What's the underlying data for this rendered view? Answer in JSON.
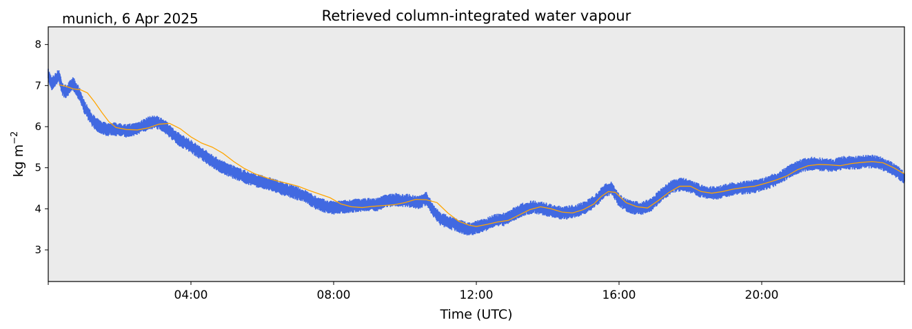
{
  "chart_data": {
    "type": "line",
    "title": "Retrieved column-integrated water vapour",
    "subtitle": "munich, 6 Apr 2025",
    "xlabel": "Time (UTC)",
    "ylabel": "kg m",
    "ylabel_sup": "−2",
    "x_unit": "hours UTC",
    "xlim": [
      0,
      24
    ],
    "ylim": [
      2.23,
      8.43
    ],
    "x_ticks": [
      {
        "value": 4,
        "label": "04:00"
      },
      {
        "value": 8,
        "label": "08:00"
      },
      {
        "value": 12,
        "label": "12:00"
      },
      {
        "value": 16,
        "label": "16:00"
      },
      {
        "value": 20,
        "label": "20:00"
      }
    ],
    "y_ticks": [
      {
        "value": 3,
        "label": "3"
      },
      {
        "value": 4,
        "label": "4"
      },
      {
        "value": 5,
        "label": "5"
      },
      {
        "value": 6,
        "label": "6"
      },
      {
        "value": 7,
        "label": "7"
      },
      {
        "value": 8,
        "label": "8"
      }
    ],
    "background": "#ebebeb",
    "grid": false,
    "series": [
      {
        "style": "scatter-band",
        "color": "#4169e1",
        "x": [
          0.0,
          0.1,
          0.2,
          0.3,
          0.4,
          0.5,
          0.6,
          0.7,
          0.8,
          0.9,
          1.0,
          1.1,
          1.2,
          1.35,
          1.5,
          1.65,
          1.8,
          2.0,
          2.2,
          2.4,
          2.6,
          2.8,
          3.0,
          3.2,
          3.4,
          3.6,
          3.8,
          4.0,
          4.2,
          4.5,
          4.8,
          5.1,
          5.4,
          5.7,
          6.0,
          6.3,
          6.6,
          6.9,
          7.2,
          7.5,
          7.8,
          8.0,
          8.3,
          8.6,
          8.9,
          9.2,
          9.5,
          9.8,
          10.1,
          10.4,
          10.6,
          10.8,
          11.0,
          11.2,
          11.4,
          11.6,
          11.8,
          12.0,
          12.2,
          12.5,
          12.8,
          13.0,
          13.3,
          13.6,
          13.9,
          14.2,
          14.5,
          14.8,
          15.1,
          15.4,
          15.6,
          15.8,
          16.0,
          16.3,
          16.6,
          16.9,
          17.2,
          17.5,
          17.8,
          18.1,
          18.4,
          18.7,
          19.0,
          19.3,
          19.6,
          19.9,
          20.2,
          20.5,
          20.8,
          21.1,
          21.4,
          21.7,
          22.0,
          22.3,
          22.6,
          22.9,
          23.2,
          23.5,
          23.8,
          24.0
        ],
        "y": [
          7.25,
          7.05,
          7.15,
          7.25,
          6.9,
          6.85,
          6.95,
          7.05,
          6.9,
          6.75,
          6.5,
          6.35,
          6.2,
          6.05,
          5.98,
          5.93,
          5.95,
          5.92,
          5.9,
          5.93,
          6.0,
          6.08,
          6.12,
          6.05,
          5.9,
          5.72,
          5.62,
          5.52,
          5.4,
          5.22,
          5.05,
          4.92,
          4.82,
          4.72,
          4.65,
          4.58,
          4.48,
          4.4,
          4.3,
          4.15,
          4.05,
          4.02,
          4.05,
          4.08,
          4.1,
          4.1,
          4.2,
          4.22,
          4.2,
          4.15,
          4.25,
          3.95,
          3.75,
          3.68,
          3.62,
          3.55,
          3.5,
          3.55,
          3.6,
          3.7,
          3.75,
          3.85,
          3.98,
          4.05,
          4.0,
          3.92,
          3.9,
          3.95,
          4.05,
          4.25,
          4.45,
          4.5,
          4.2,
          4.05,
          4.0,
          4.1,
          4.35,
          4.55,
          4.6,
          4.5,
          4.4,
          4.38,
          4.45,
          4.5,
          4.52,
          4.55,
          4.65,
          4.75,
          4.92,
          5.05,
          5.1,
          5.08,
          5.05,
          5.12,
          5.12,
          5.15,
          5.15,
          5.05,
          4.9,
          4.75
        ],
        "spread": 0.12
      },
      {
        "style": "line",
        "color": "#ffa500",
        "x": [
          0.3,
          0.5,
          0.7,
          0.9,
          1.1,
          1.3,
          1.5,
          1.7,
          1.9,
          2.2,
          2.5,
          2.8,
          3.1,
          3.4,
          3.7,
          4.0,
          4.3,
          4.6,
          4.9,
          5.2,
          5.5,
          5.8,
          6.1,
          6.4,
          6.7,
          7.0,
          7.3,
          7.6,
          7.9,
          8.2,
          8.5,
          8.8,
          9.1,
          9.4,
          9.7,
          10.0,
          10.3,
          10.6,
          10.9,
          11.2,
          11.5,
          11.8,
          12.0,
          12.3,
          12.6,
          12.9,
          13.2,
          13.5,
          13.8,
          14.1,
          14.4,
          14.7,
          15.0,
          15.3,
          15.5,
          15.7,
          15.9,
          16.2,
          16.5,
          16.8,
          17.1,
          17.4,
          17.7,
          18.0,
          18.3,
          18.6,
          18.9,
          19.2,
          19.5,
          19.8,
          20.1,
          20.4,
          20.7,
          21.0,
          21.3,
          21.6,
          21.9,
          22.2,
          22.5,
          22.8,
          23.1,
          23.4,
          23.7,
          24.0
        ],
        "y": [
          7.02,
          6.98,
          6.92,
          6.9,
          6.82,
          6.6,
          6.35,
          6.12,
          5.98,
          5.93,
          5.92,
          5.97,
          6.06,
          6.08,
          5.95,
          5.75,
          5.6,
          5.5,
          5.35,
          5.15,
          4.98,
          4.85,
          4.76,
          4.68,
          4.62,
          4.55,
          4.45,
          4.36,
          4.27,
          4.12,
          4.05,
          4.03,
          4.06,
          4.08,
          4.1,
          4.15,
          4.23,
          4.22,
          4.15,
          3.9,
          3.7,
          3.6,
          3.57,
          3.62,
          3.68,
          3.72,
          3.85,
          3.98,
          4.05,
          4.0,
          3.92,
          3.9,
          3.98,
          4.12,
          4.3,
          4.42,
          4.4,
          4.15,
          4.05,
          4.02,
          4.2,
          4.4,
          4.55,
          4.55,
          4.42,
          4.38,
          4.42,
          4.48,
          4.52,
          4.55,
          4.62,
          4.7,
          4.8,
          4.95,
          5.05,
          5.08,
          5.07,
          5.05,
          5.1,
          5.13,
          5.15,
          5.12,
          5.0,
          4.85
        ]
      }
    ]
  }
}
